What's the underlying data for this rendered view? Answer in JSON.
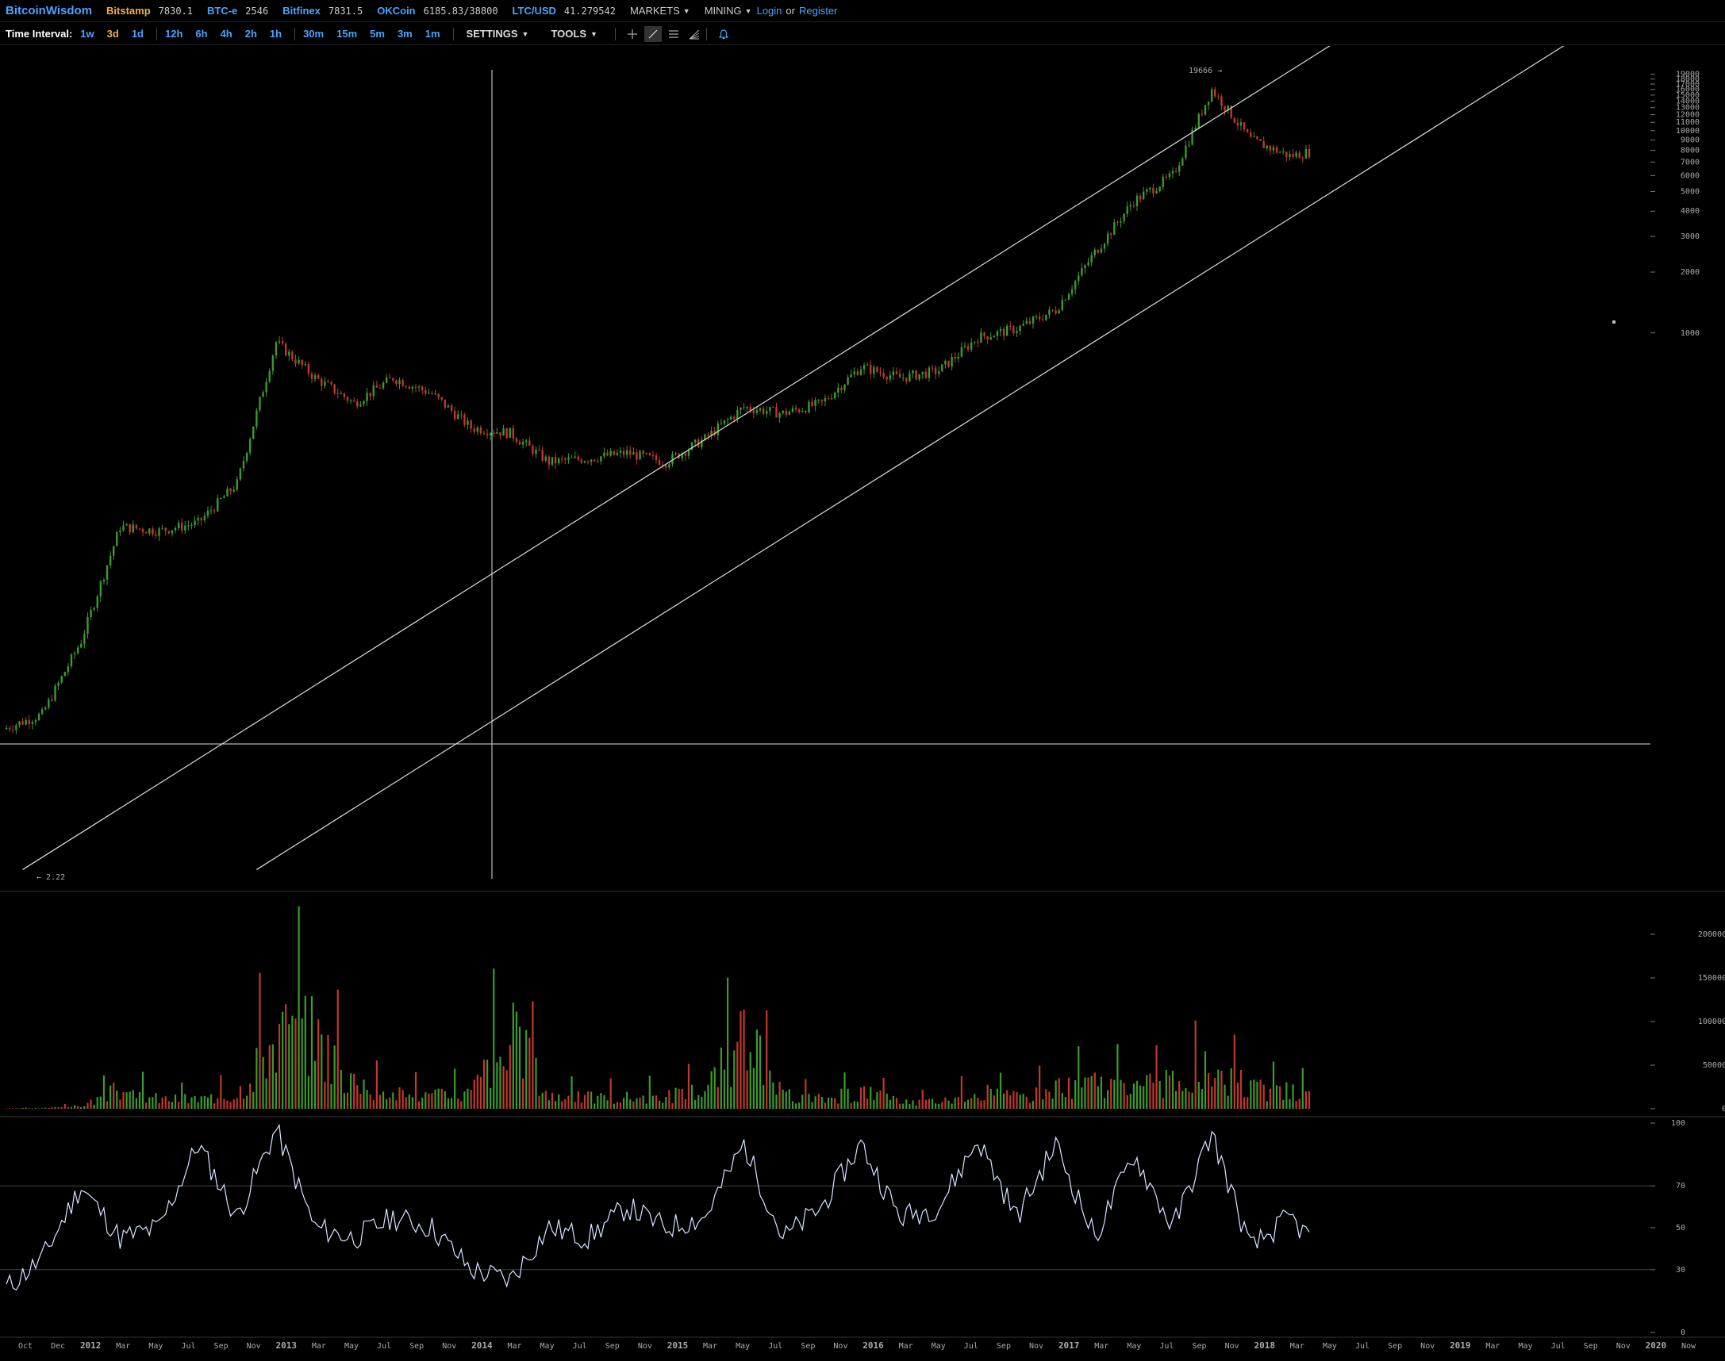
{
  "header": {
    "brand": "BitcoinWisdom",
    "tickers": [
      {
        "exchange": "Bitstamp",
        "price": "7830.1",
        "color": "#f0ad4e"
      },
      {
        "exchange": "BTC-e",
        "price": "2546",
        "color": "#4aa3ff"
      },
      {
        "exchange": "Bitfinex",
        "price": "7831.5",
        "color": "#4aa3ff"
      },
      {
        "exchange": "OKCoin",
        "price": "6185.83/38800",
        "color": "#4aa3ff"
      },
      {
        "exchange": "LTC/USD",
        "price": "41.279542",
        "color": "#4aa3ff"
      }
    ],
    "menus": [
      "MARKETS",
      "MINING"
    ],
    "login": "Login",
    "or": "or",
    "register": "Register"
  },
  "toolbar": {
    "time_interval_label": "Time Interval:",
    "intervals": [
      "1w",
      "3d",
      "1d",
      "12h",
      "6h",
      "4h",
      "2h",
      "1h",
      "30m",
      "15m",
      "5m",
      "3m",
      "1m"
    ],
    "active_interval": "3d",
    "settings": "SETTINGS",
    "tools": "TOOLS",
    "tool_icons": [
      "crosshair-icon",
      "trendline-icon",
      "horizontal-lines-icon",
      "fib-fan-icon",
      "alert-bell-icon"
    ]
  },
  "chart_data": [
    {
      "type": "candlestick",
      "title": "",
      "scale": "log",
      "y_ticks": [
        1000,
        2000,
        3000,
        4000,
        5000,
        6000,
        7000,
        8000,
        9000,
        10000,
        11000,
        12000,
        13000,
        14000,
        15000,
        16000,
        17000,
        18000,
        19000
      ],
      "high_label": "19666",
      "low_label": "2.22",
      "colors": {
        "up": "#3c9a2e",
        "down": "#c0392b"
      },
      "x": [
        "2012-10",
        "2012-12",
        "2013-02",
        "2013-04",
        "2013-06",
        "2013-08",
        "2013-10",
        "2013-12",
        "2014-02",
        "2014-04",
        "2014-06",
        "2014-08",
        "2014-10",
        "2014-12",
        "2015-02",
        "2015-04",
        "2015-06",
        "2015-08",
        "2015-10",
        "2015-12",
        "2016-02",
        "2016-04",
        "2016-06",
        "2016-08",
        "2016-10",
        "2016-12",
        "2017-02",
        "2017-04",
        "2017-06",
        "2017-08",
        "2017-10",
        "2017-12",
        "2018-02",
        "2018-04",
        "2018-05"
      ],
      "close": [
        11,
        13,
        30,
        110,
        105,
        115,
        180,
        900,
        600,
        450,
        600,
        500,
        340,
        320,
        230,
        240,
        255,
        230,
        300,
        430,
        400,
        450,
        680,
        600,
        650,
        950,
        1050,
        1300,
        2500,
        4500,
        6000,
        16000,
        9000,
        7500,
        7830
      ],
      "annotations": [
        {
          "type": "trendline",
          "from": [
            "2012-11",
            2.22
          ],
          "to": [
            "2018-07",
            30000
          ]
        },
        {
          "type": "trendline",
          "from": [
            "2013-11",
            2.22
          ],
          "to": [
            "2019-07",
            30000
          ]
        }
      ]
    },
    {
      "type": "bar",
      "title": "",
      "ylabel": "",
      "y_ticks": [
        0,
        50000,
        100000,
        150000,
        200000
      ],
      "x": [
        "2012-10",
        "2012-12",
        "2013-02",
        "2013-04",
        "2013-06",
        "2013-08",
        "2013-10",
        "2013-12",
        "2014-02",
        "2014-04",
        "2014-06",
        "2014-08",
        "2014-10",
        "2014-12",
        "2015-02",
        "2015-04",
        "2015-06",
        "2015-08",
        "2015-10",
        "2015-12",
        "2016-02",
        "2016-04",
        "2016-06",
        "2016-08",
        "2016-10",
        "2016-12",
        "2017-02",
        "2017-04",
        "2017-06",
        "2017-08",
        "2017-10",
        "2017-12",
        "2018-02",
        "2018-04",
        "2018-05"
      ],
      "values": [
        1000,
        2000,
        8000,
        60000,
        30000,
        30000,
        45000,
        235000,
        230000,
        70000,
        45000,
        40000,
        50000,
        240000,
        40000,
        35000,
        35000,
        40000,
        60000,
        215000,
        40000,
        30000,
        50000,
        25000,
        20000,
        50000,
        35000,
        60000,
        80000,
        70000,
        75000,
        120000,
        60000,
        50000,
        45000
      ]
    },
    {
      "type": "line",
      "title": "",
      "ylabel": "",
      "y_ticks": [
        0,
        30,
        50,
        70,
        100
      ],
      "ylim": [
        0,
        100
      ],
      "reference_lines": [
        30,
        70
      ],
      "x": [
        "2012-10",
        "2012-12",
        "2013-02",
        "2013-04",
        "2013-06",
        "2013-08",
        "2013-10",
        "2013-12",
        "2014-02",
        "2014-04",
        "2014-06",
        "2014-08",
        "2014-10",
        "2014-12",
        "2015-02",
        "2015-04",
        "2015-06",
        "2015-08",
        "2015-10",
        "2015-12",
        "2016-02",
        "2016-04",
        "2016-06",
        "2016-08",
        "2016-10",
        "2016-12",
        "2017-02",
        "2017-04",
        "2017-06",
        "2017-08",
        "2017-10",
        "2017-12",
        "2018-02",
        "2018-04",
        "2018-05"
      ],
      "values": [
        20,
        35,
        70,
        45,
        50,
        90,
        55,
        97,
        50,
        45,
        55,
        50,
        30,
        25,
        50,
        45,
        60,
        50,
        55,
        90,
        45,
        60,
        90,
        55,
        60,
        92,
        55,
        90,
        45,
        85,
        50,
        95,
        40,
        55,
        45
      ],
      "color": "#d9e4ff"
    }
  ],
  "time_axis": {
    "labels": [
      "Oct",
      "Dec",
      "2012",
      "Mar",
      "May",
      "Jul",
      "Sep",
      "Nov",
      "2013",
      "Mar",
      "May",
      "Jul",
      "Sep",
      "Nov",
      "2014",
      "Mar",
      "May",
      "Jul",
      "Sep",
      "Nov",
      "2015",
      "Mar",
      "May",
      "Jul",
      "Sep",
      "Nov",
      "2016",
      "Mar",
      "May",
      "Jul",
      "Sep",
      "Nov",
      "2017",
      "Mar",
      "May",
      "Jul",
      "Sep",
      "Nov",
      "2018",
      "Mar",
      "May",
      "Jul",
      "Sep",
      "Nov",
      "2019",
      "Mar",
      "May",
      "Jul",
      "Sep",
      "Nov",
      "2020",
      "Now"
    ]
  }
}
